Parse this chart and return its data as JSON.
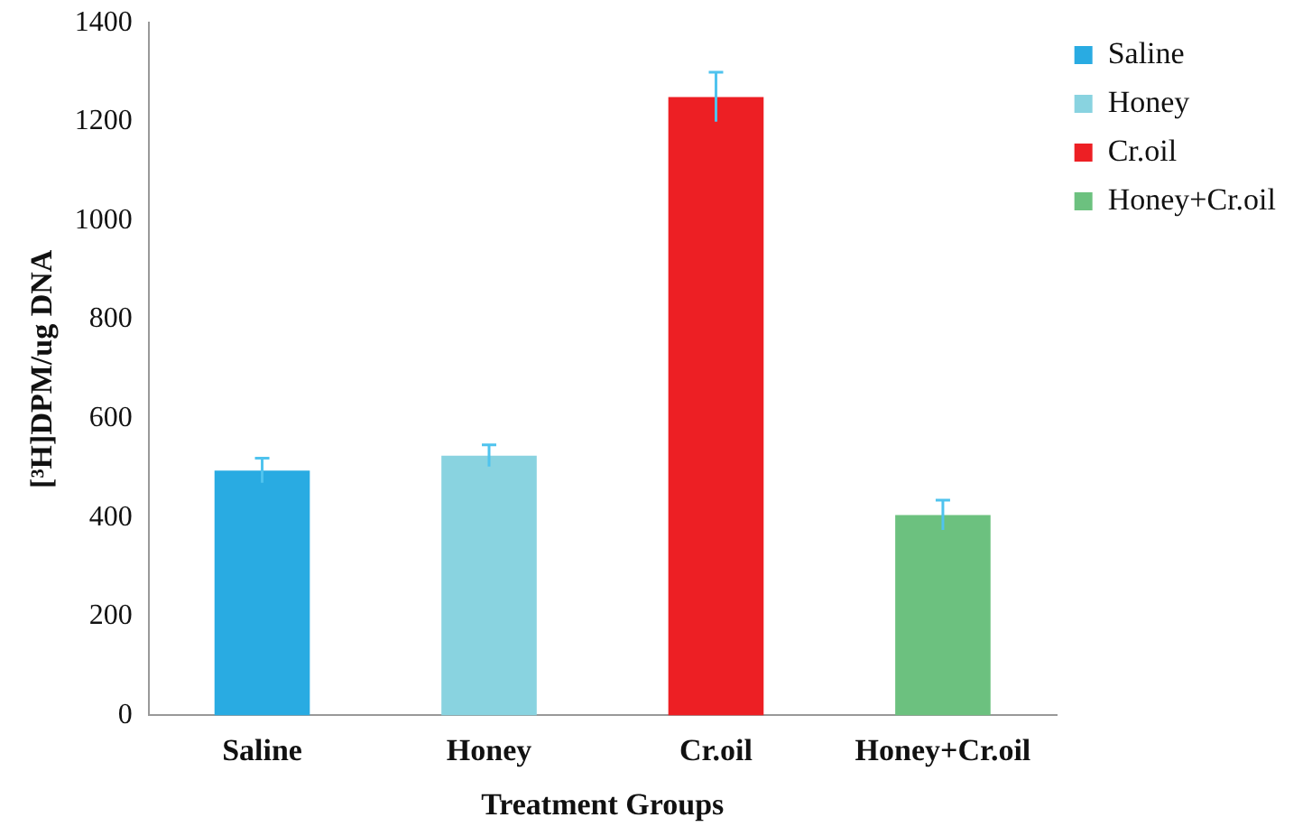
{
  "chart_data": {
    "type": "bar",
    "xlabel": "Treatment Groups",
    "ylabel": "[³H]DPM/ug DNA",
    "categories": [
      "Saline",
      "Honey",
      "Cr.oil",
      "Honey+Cr.oil"
    ],
    "series": [
      {
        "name": "Saline",
        "color": "#29abe2",
        "values": [
          495,
          null,
          null,
          null
        ],
        "errors": [
          25,
          null,
          null,
          null
        ]
      },
      {
        "name": "Honey",
        "color": "#89d3e0",
        "values": [
          null,
          525,
          null,
          null
        ],
        "errors": [
          null,
          22,
          null,
          null
        ]
      },
      {
        "name": "Cr.oil",
        "color": "#ed1f24",
        "values": [
          null,
          null,
          1250,
          null
        ],
        "errors": [
          null,
          null,
          50,
          null
        ]
      },
      {
        "name": "Honey+Cr.oil",
        "color": "#6cc17f",
        "values": [
          null,
          null,
          null,
          405
        ],
        "errors": [
          null,
          null,
          null,
          30
        ]
      }
    ],
    "ylim": [
      0,
      1400
    ],
    "yticks": [
      0,
      200,
      400,
      600,
      800,
      1000,
      1200,
      1400
    ],
    "grid": false,
    "legend": "top right"
  }
}
